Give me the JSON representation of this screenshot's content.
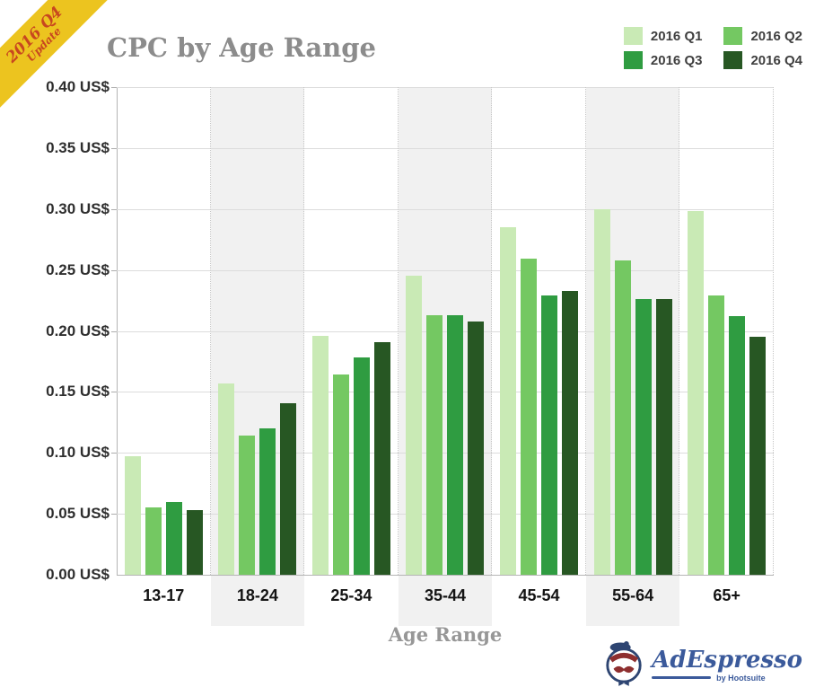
{
  "ribbon": {
    "line1": "2016 Q4",
    "line2": "Update",
    "bg_color": "#ecc41f",
    "text_color": "#c8471f"
  },
  "chart_data": {
    "type": "bar",
    "title": "CPC by Age Range",
    "xlabel": "Age Range",
    "ylabel": "",
    "ylim": [
      0,
      0.4
    ],
    "ytick_step": 0.05,
    "ytick_suffix": " US$",
    "grid": true,
    "legend_position": "top-right",
    "band_color": "#f1f1f1",
    "categories": [
      "13-17",
      "18-24",
      "25-34",
      "35-44",
      "45-54",
      "55-64",
      "65+"
    ],
    "series": [
      {
        "name": "2016 Q1",
        "color": "#c9eab5",
        "values": [
          0.097,
          0.157,
          0.196,
          0.245,
          0.285,
          0.3,
          0.298
        ]
      },
      {
        "name": "2016 Q2",
        "color": "#74c862",
        "values": [
          0.055,
          0.114,
          0.164,
          0.213,
          0.259,
          0.258,
          0.229
        ]
      },
      {
        "name": "2016 Q3",
        "color": "#2f9c41",
        "values": [
          0.06,
          0.12,
          0.178,
          0.213,
          0.229,
          0.226,
          0.212
        ]
      },
      {
        "name": "2016 Q4",
        "color": "#275723",
        "values": [
          0.053,
          0.141,
          0.191,
          0.208,
          0.233,
          0.226,
          0.195
        ]
      }
    ]
  },
  "footer": {
    "brand": "AdEspresso",
    "byline": "by Hootsuite",
    "brand_color": "#3b5a9b"
  }
}
